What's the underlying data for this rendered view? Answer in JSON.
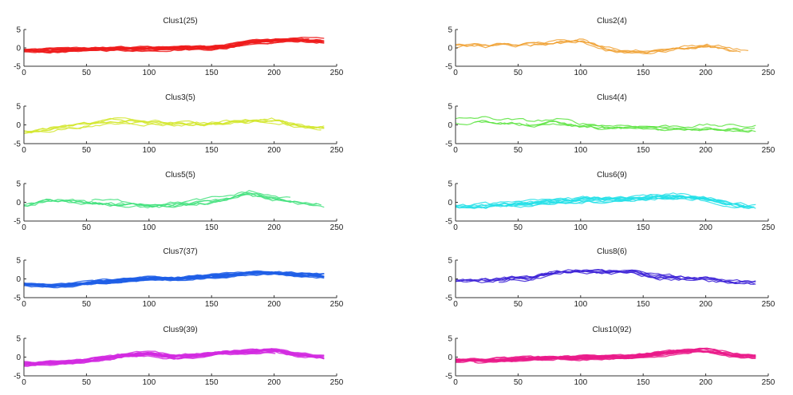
{
  "figure": {
    "panels": [
      {
        "title": "Clus1(25)",
        "color": "#ee1c1c"
      },
      {
        "title": "Clus2(4)",
        "color": "#f0a030"
      },
      {
        "title": "Clus3(5)",
        "color": "#d2e62a"
      },
      {
        "title": "Clus4(4)",
        "color": "#58e33c"
      },
      {
        "title": "Clus5(5)",
        "color": "#3ee07a"
      },
      {
        "title": "Clus6(9)",
        "color": "#22dfe8"
      },
      {
        "title": "Clus7(37)",
        "color": "#1e5ee6"
      },
      {
        "title": "Clus8(6)",
        "color": "#3a1ed6"
      },
      {
        "title": "Clus9(39)",
        "color": "#d22ae0"
      },
      {
        "title": "Clus10(92)",
        "color": "#ea1a8a"
      }
    ],
    "x_ticks": [
      "0",
      "50",
      "100",
      "150",
      "200",
      "250"
    ],
    "y_ticks": [
      "5",
      "0",
      "-5"
    ]
  },
  "chart_data": [
    {
      "type": "line",
      "title": "Clus1(25)",
      "series_count": 25,
      "xlim": [
        0,
        250
      ],
      "ylim": [
        -5,
        5
      ],
      "x": [
        0,
        20,
        40,
        60,
        80,
        100,
        120,
        140,
        160,
        180,
        200,
        220,
        240
      ],
      "mean_profile": [
        -0.8,
        -0.8,
        -0.6,
        -0.3,
        -0.3,
        -0.3,
        -0.1,
        -0.1,
        0.2,
        1.5,
        2.0,
        2.2,
        1.8
      ]
    },
    {
      "type": "line",
      "title": "Clus2(4)",
      "series_count": 4,
      "xlim": [
        0,
        250
      ],
      "ylim": [
        -5,
        5
      ],
      "x": [
        0,
        20,
        40,
        60,
        80,
        100,
        120,
        140,
        160,
        180,
        200,
        220,
        240
      ],
      "mean_profile": [
        0.2,
        0.5,
        0.5,
        0.5,
        1.5,
        1.8,
        -0.5,
        -1.2,
        -1.2,
        -0.3,
        0.5,
        -0.5,
        -1.8
      ]
    },
    {
      "type": "line",
      "title": "Clus3(5)",
      "series_count": 5,
      "xlim": [
        0,
        250
      ],
      "ylim": [
        -5,
        5
      ],
      "x": [
        0,
        20,
        40,
        60,
        80,
        100,
        120,
        140,
        160,
        180,
        200,
        220,
        240
      ],
      "mean_profile": [
        -2.0,
        -1.2,
        -0.5,
        0.6,
        1.0,
        0.5,
        0.2,
        0.3,
        0.5,
        0.9,
        1.2,
        -0.3,
        -0.8
      ]
    },
    {
      "type": "line",
      "title": "Clus4(4)",
      "series_count": 4,
      "xlim": [
        0,
        250
      ],
      "ylim": [
        -5,
        5
      ],
      "x": [
        0,
        20,
        40,
        60,
        80,
        100,
        120,
        140,
        160,
        180,
        200,
        220,
        240
      ],
      "mean_profile": [
        1.0,
        1.5,
        1.0,
        0.5,
        1.0,
        0.0,
        -0.5,
        -0.5,
        -0.8,
        -0.7,
        -0.5,
        -0.7,
        -0.8
      ]
    },
    {
      "type": "line",
      "title": "Clus5(5)",
      "series_count": 5,
      "xlim": [
        0,
        250
      ],
      "ylim": [
        -5,
        5
      ],
      "x": [
        0,
        20,
        40,
        60,
        80,
        100,
        120,
        140,
        160,
        180,
        200,
        220,
        240
      ],
      "mean_profile": [
        -0.5,
        1.0,
        0.5,
        0.0,
        -0.3,
        -0.8,
        -0.5,
        0.0,
        0.8,
        2.5,
        1.0,
        0.2,
        -0.5
      ]
    },
    {
      "type": "line",
      "title": "Clus6(9)",
      "series_count": 9,
      "xlim": [
        0,
        250
      ],
      "ylim": [
        -5,
        5
      ],
      "x": [
        0,
        20,
        40,
        60,
        80,
        100,
        120,
        140,
        160,
        180,
        200,
        220,
        240
      ],
      "mean_profile": [
        -1.5,
        -1.3,
        -0.8,
        -0.5,
        0.2,
        0.5,
        0.5,
        0.8,
        1.2,
        1.5,
        0.8,
        -0.5,
        -1.5
      ]
    },
    {
      "type": "line",
      "title": "Clus7(37)",
      "series_count": 37,
      "xlim": [
        0,
        250
      ],
      "ylim": [
        -5,
        5
      ],
      "x": [
        0,
        20,
        40,
        60,
        80,
        100,
        120,
        140,
        160,
        180,
        200,
        220,
        240
      ],
      "mean_profile": [
        -1.5,
        -1.8,
        -1.5,
        -1.0,
        -0.5,
        0.0,
        0.0,
        0.5,
        0.8,
        1.5,
        1.5,
        1.0,
        0.8
      ]
    },
    {
      "type": "line",
      "title": "Clus8(6)",
      "series_count": 6,
      "xlim": [
        0,
        250
      ],
      "ylim": [
        -5,
        5
      ],
      "x": [
        0,
        20,
        40,
        60,
        80,
        100,
        120,
        140,
        160,
        180,
        200,
        220,
        240
      ],
      "mean_profile": [
        -1.0,
        -0.8,
        -0.5,
        0.0,
        1.5,
        1.8,
        1.5,
        1.8,
        0.2,
        0.0,
        -0.2,
        -1.2,
        -1.5
      ]
    },
    {
      "type": "line",
      "title": "Clus9(39)",
      "series_count": 39,
      "xlim": [
        0,
        250
      ],
      "ylim": [
        -5,
        5
      ],
      "x": [
        0,
        20,
        40,
        60,
        80,
        100,
        120,
        140,
        160,
        180,
        200,
        220,
        240
      ],
      "mean_profile": [
        -1.8,
        -1.5,
        -1.2,
        -0.5,
        0.5,
        1.0,
        0.0,
        0.5,
        1.2,
        1.5,
        1.8,
        0.5,
        0.0
      ]
    },
    {
      "type": "line",
      "title": "Clus10(92)",
      "series_count": 92,
      "xlim": [
        0,
        250
      ],
      "ylim": [
        -5,
        5
      ],
      "x": [
        0,
        20,
        40,
        60,
        80,
        100,
        120,
        140,
        160,
        180,
        200,
        220,
        240
      ],
      "mean_profile": [
        -1.0,
        -1.0,
        -0.8,
        -0.5,
        -0.3,
        -0.2,
        0.0,
        0.0,
        0.8,
        1.5,
        1.8,
        0.5,
        0.0
      ]
    }
  ]
}
